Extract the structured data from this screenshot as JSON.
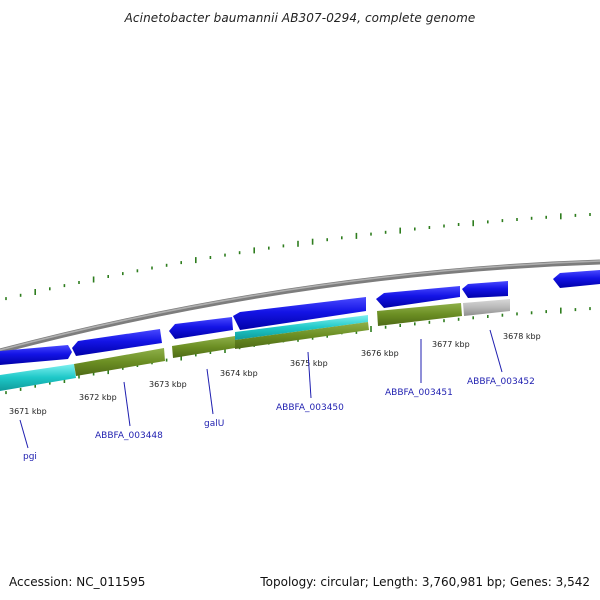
{
  "title": "Acinetobacter baumannii AB307-0294, complete genome",
  "footer": {
    "accession": "Accession: NC_011595",
    "summary": "Topology: circular; Length: 3,760,981 bp; Genes: 3,542"
  },
  "colors": {
    "cds_forward": "#0b0bd6",
    "cds_reverse_blue": "#1010e0",
    "gene_olive": "#6b8e23",
    "gene_cyan": "#1ec8c8",
    "gene_grey": "#b8b8b8",
    "backbone": "#8a8a8a",
    "gc_ticks": "#2e7d1e",
    "label": "#1f1fb0"
  },
  "position_labels": [
    "3671 kbp",
    "3672 kbp",
    "3673 kbp",
    "3674 kbp",
    "3675 kbp",
    "3676 kbp",
    "3677 kbp",
    "3678 kbp"
  ],
  "gene_labels": [
    "pgi",
    "ABBFA_003448",
    "galU",
    "ABBFA_003450",
    "ABBFA_003451",
    "ABBFA_003452"
  ]
}
